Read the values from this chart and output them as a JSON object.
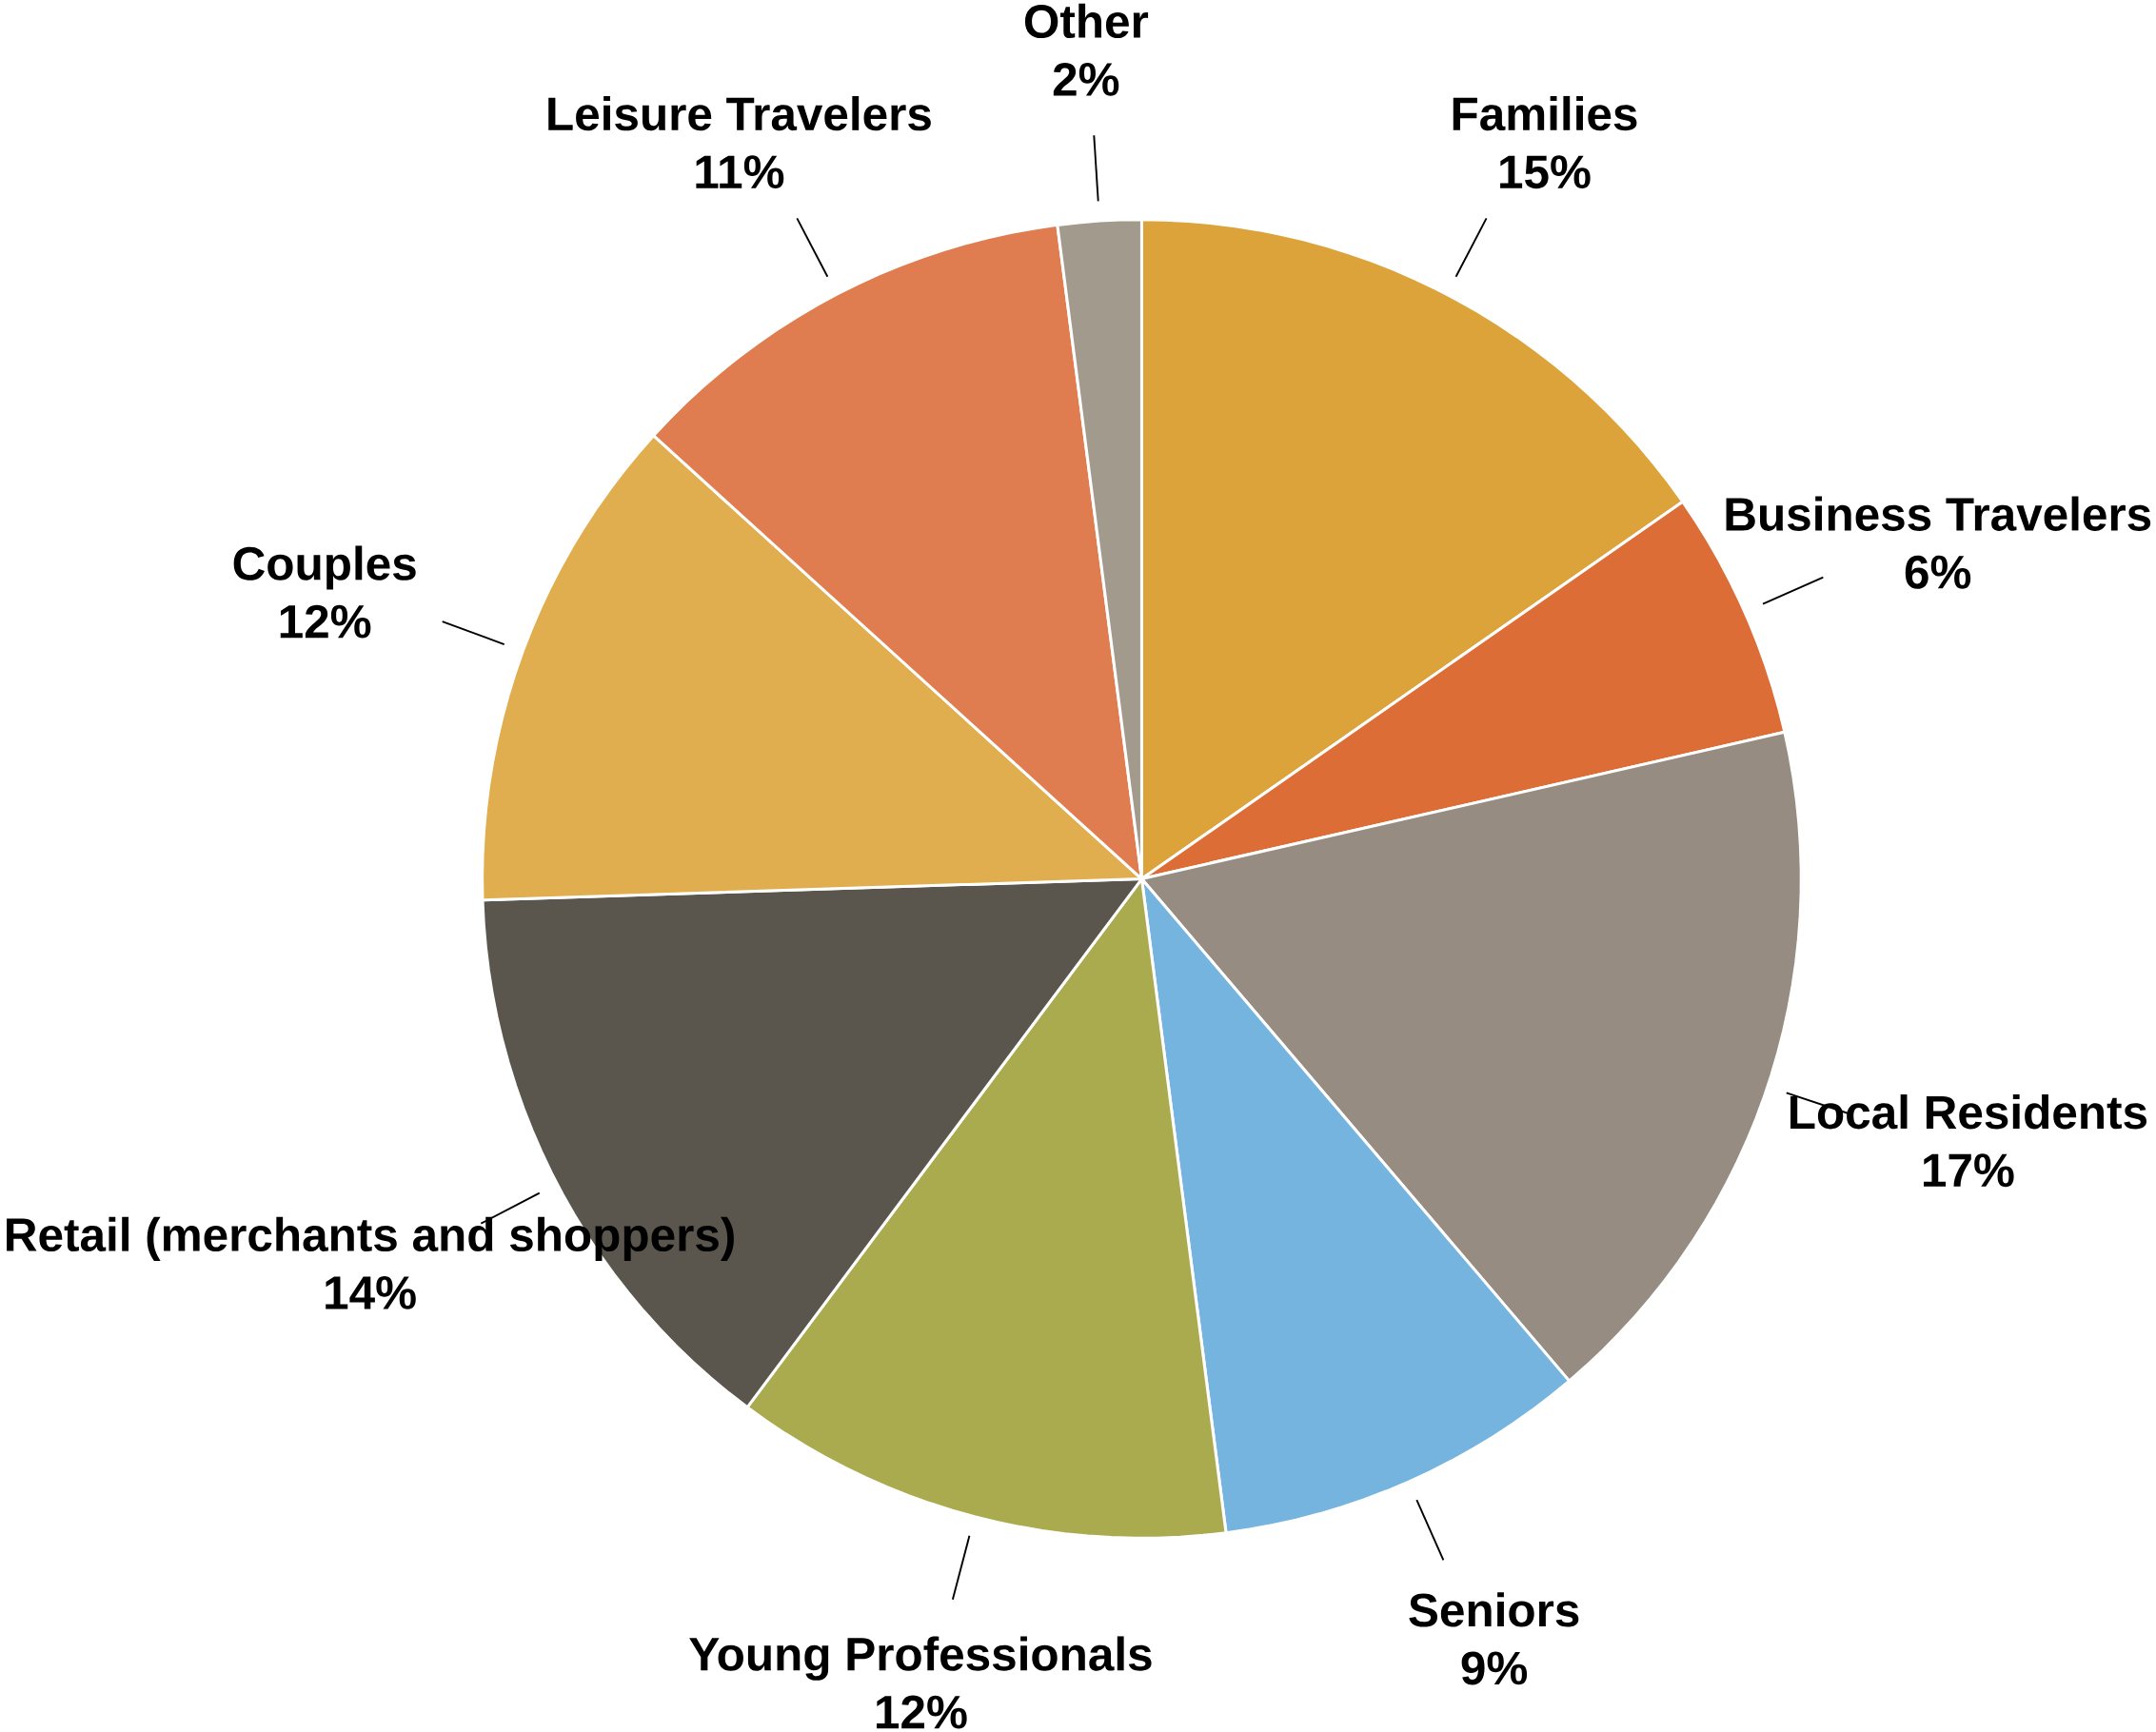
{
  "chart_data": {
    "type": "pie",
    "categories": [
      "Families",
      "Business Travelers",
      "Local Residents",
      "Seniors",
      "Young Professionals",
      "Retail (merchants and shoppers)",
      "Couples",
      "Leisure Travelers",
      "Other"
    ],
    "values": [
      15,
      6,
      17,
      9,
      12,
      14,
      12,
      11,
      2
    ],
    "value_labels": [
      "15%",
      "6%",
      "17%",
      "9%",
      "12%",
      "14%",
      "12%",
      "11%",
      "2%"
    ],
    "colors": [
      "#dba339",
      "#dd6d37",
      "#968c82",
      "#76b4e0",
      "#aaab4e",
      "#5a564e",
      "#e0ad4f",
      "#e07d50",
      "#a39a8e"
    ]
  }
}
